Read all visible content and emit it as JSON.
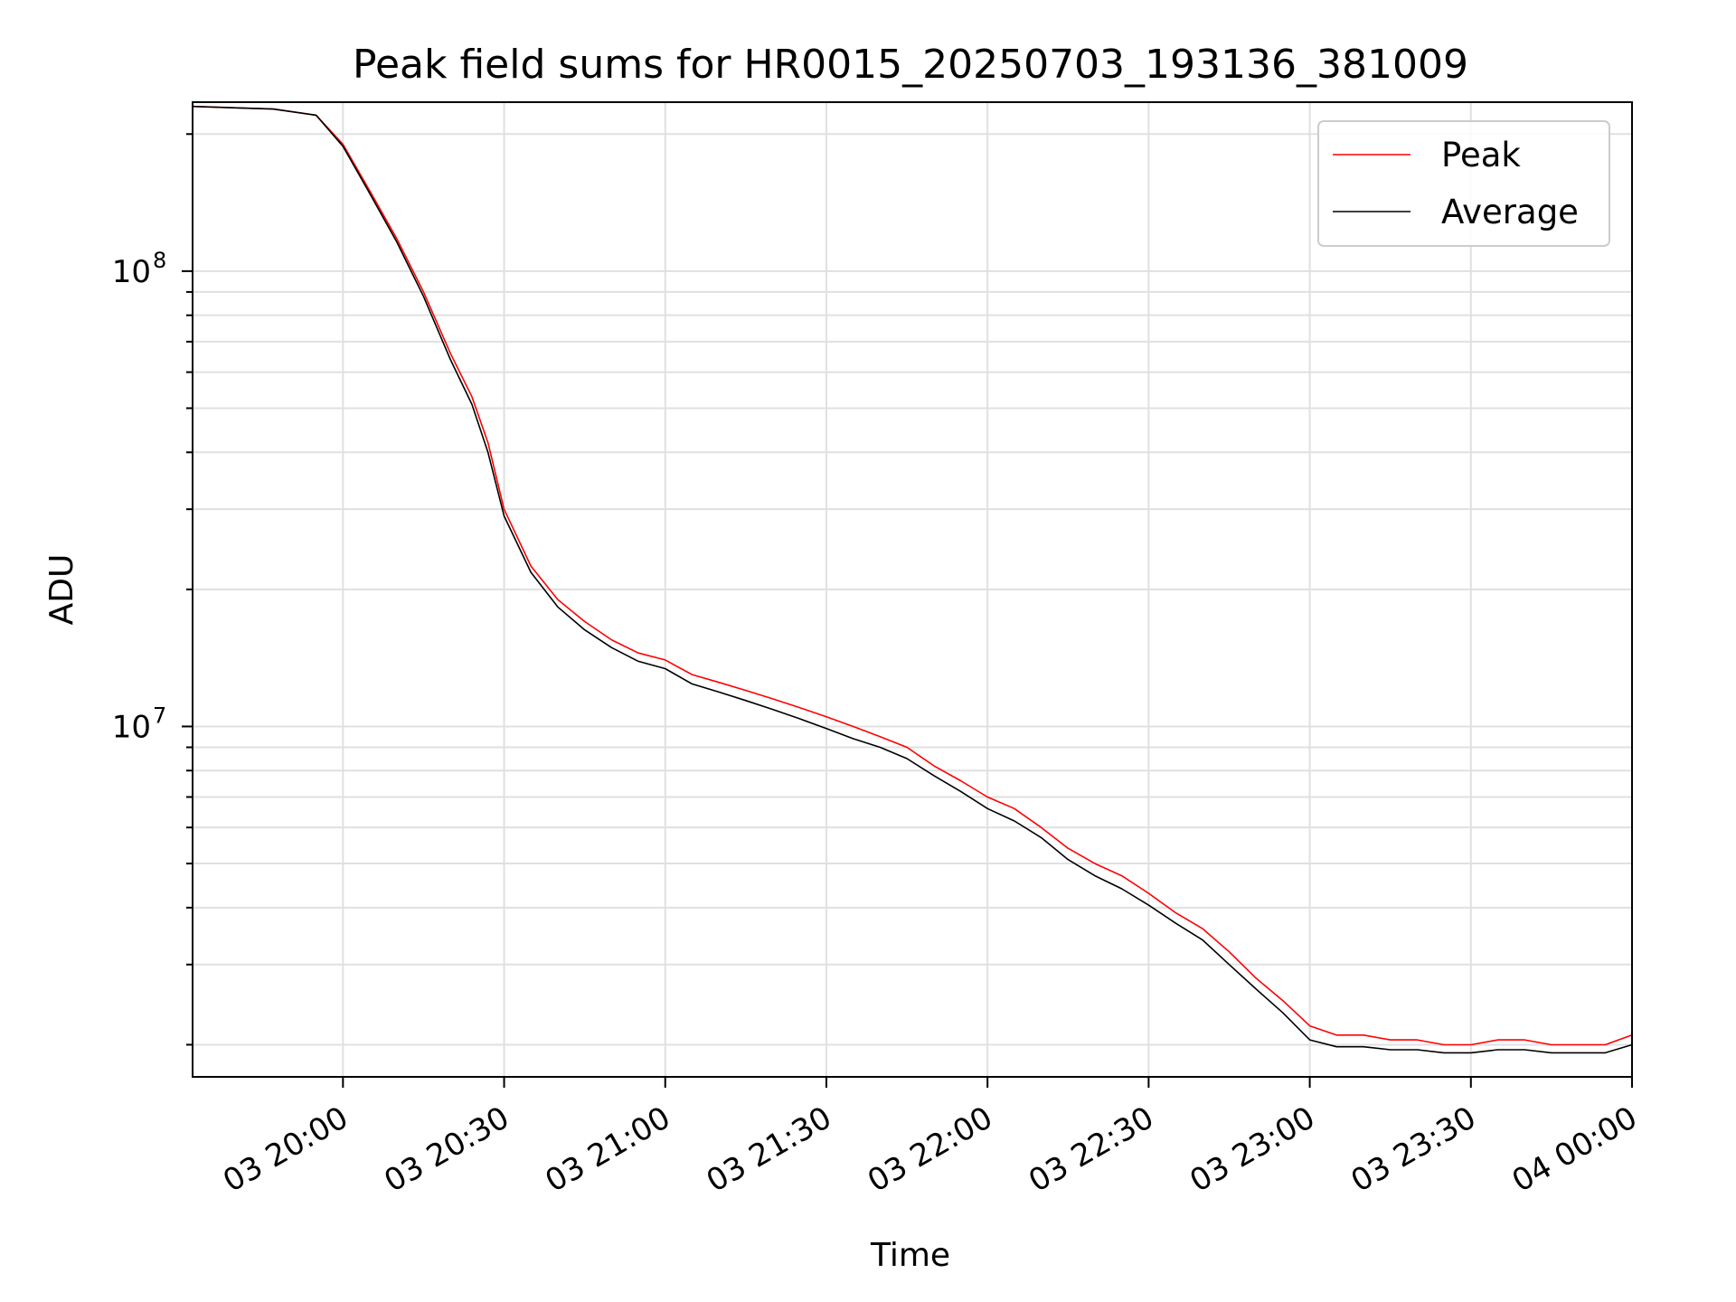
{
  "chart_data": {
    "type": "line",
    "title": "Peak field sums for HR0015_20250703_193136_381009",
    "xlabel": "Time",
    "ylabel": "ADU",
    "yscale": "log",
    "grid": true,
    "legend_position": "top-right",
    "xlim": [
      "2025-07-03 19:32",
      "2025-07-04 00:00"
    ],
    "ylim": [
      1700000,
      235000000
    ],
    "x_ticks": [
      "03 20:00",
      "03 20:30",
      "03 21:00",
      "03 21:30",
      "03 22:00",
      "03 22:30",
      "03 23:00",
      "03 23:30",
      "04 00:00"
    ],
    "y_tick_labels": [
      {
        "value": 100000000,
        "base": "10",
        "exp": "8"
      },
      {
        "value": 10000000,
        "base": "10",
        "exp": "7"
      }
    ],
    "x": [
      "2025-07-03 19:32",
      "2025-07-03 19:47",
      "2025-07-03 19:55",
      "2025-07-03 20:00",
      "2025-07-03 20:05",
      "2025-07-03 20:10",
      "2025-07-03 20:15",
      "2025-07-03 20:20",
      "2025-07-03 20:24",
      "2025-07-03 20:27",
      "2025-07-03 20:30",
      "2025-07-03 20:35",
      "2025-07-03 20:40",
      "2025-07-03 20:45",
      "2025-07-03 20:50",
      "2025-07-03 20:55",
      "2025-07-03 21:00",
      "2025-07-03 21:05",
      "2025-07-03 21:10",
      "2025-07-03 21:15",
      "2025-07-03 21:20",
      "2025-07-03 21:25",
      "2025-07-03 21:30",
      "2025-07-03 21:35",
      "2025-07-03 21:40",
      "2025-07-03 21:45",
      "2025-07-03 21:50",
      "2025-07-03 21:55",
      "2025-07-03 22:00",
      "2025-07-03 22:05",
      "2025-07-03 22:10",
      "2025-07-03 22:15",
      "2025-07-03 22:20",
      "2025-07-03 22:25",
      "2025-07-03 22:30",
      "2025-07-03 22:35",
      "2025-07-03 22:40",
      "2025-07-03 22:45",
      "2025-07-03 22:50",
      "2025-07-03 22:55",
      "2025-07-03 23:00",
      "2025-07-03 23:05",
      "2025-07-03 23:10",
      "2025-07-03 23:15",
      "2025-07-03 23:20",
      "2025-07-03 23:25",
      "2025-07-03 23:30",
      "2025-07-03 23:35",
      "2025-07-03 23:40",
      "2025-07-03 23:45",
      "2025-07-03 23:50",
      "2025-07-03 23:55",
      "2025-07-04 00:00"
    ],
    "series": [
      {
        "name": "Peak",
        "color": "#ff0000",
        "values": [
          230000000,
          227000000,
          220000000,
          190000000,
          150000000,
          118000000,
          90000000,
          66000000,
          53000000,
          42000000,
          30000000,
          22500000,
          19000000,
          17000000,
          15500000,
          14500000,
          14000000,
          13000000,
          12500000,
          12000000,
          11500000,
          11000000,
          10500000,
          10000000,
          9500000,
          9000000,
          8200000,
          7600000,
          7000000,
          6600000,
          6000000,
          5400000,
          5000000,
          4700000,
          4300000,
          3900000,
          3600000,
          3200000,
          2800000,
          2500000,
          2200000,
          2100000,
          2100000,
          2050000,
          2050000,
          2000000,
          2000000,
          2050000,
          2050000,
          2000000,
          2000000,
          2000000,
          2100000
        ]
      },
      {
        "name": "Average",
        "color": "#000000",
        "values": [
          230000000,
          227000000,
          220000000,
          188000000,
          148000000,
          116000000,
          88000000,
          64000000,
          51000000,
          40000000,
          29000000,
          21800000,
          18300000,
          16300000,
          14900000,
          13900000,
          13400000,
          12400000,
          11900000,
          11400000,
          10900000,
          10400000,
          9900000,
          9400000,
          9000000,
          8500000,
          7800000,
          7200000,
          6600000,
          6200000,
          5700000,
          5100000,
          4700000,
          4400000,
          4050000,
          3700000,
          3400000,
          3000000,
          2650000,
          2350000,
          2050000,
          1980000,
          1980000,
          1950000,
          1950000,
          1920000,
          1920000,
          1950000,
          1950000,
          1920000,
          1920000,
          1920000,
          2000000
        ]
      }
    ]
  }
}
